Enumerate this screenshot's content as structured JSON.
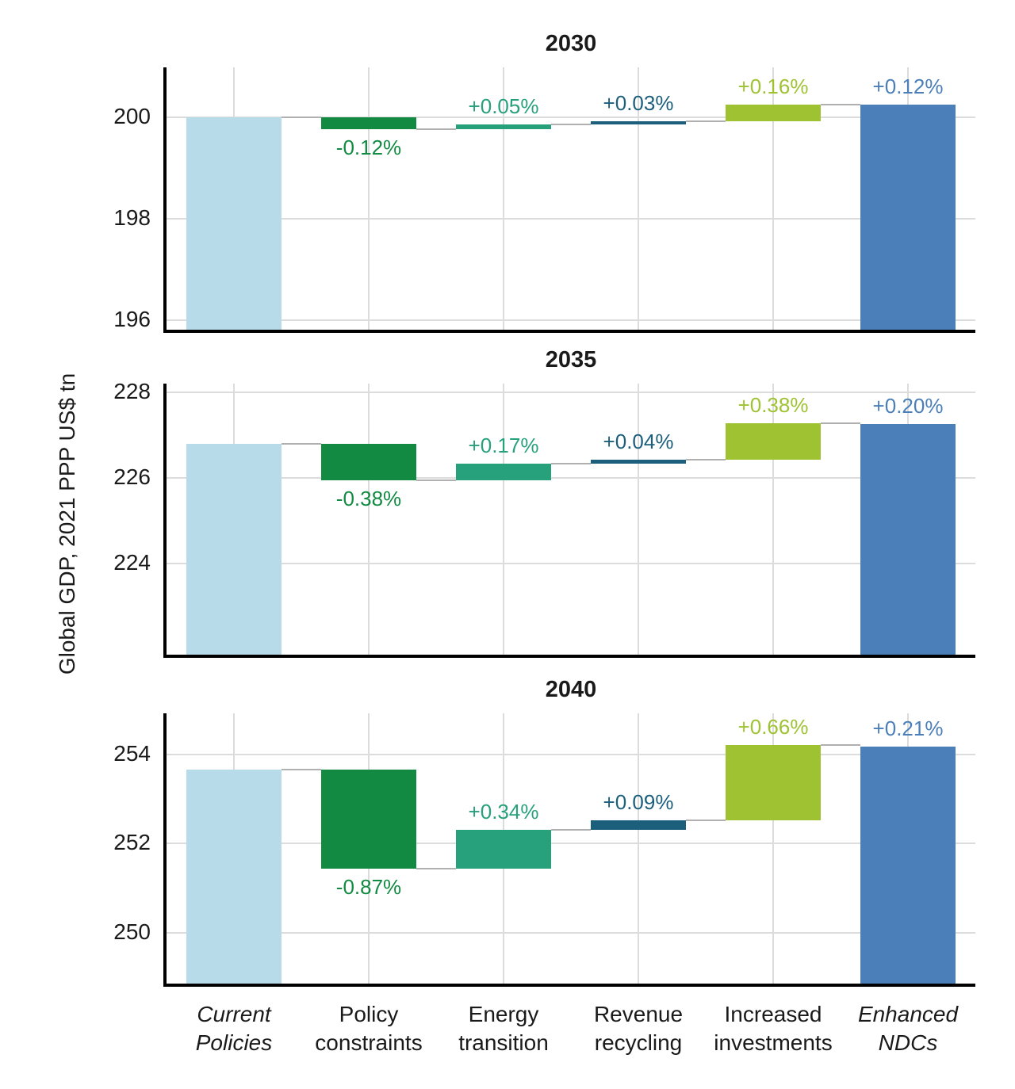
{
  "ylabel": "Global GDP, 2021 PPP US$ tn",
  "colors": {
    "current": "#b7dbe9",
    "policy": "#128a42",
    "energy": "#27a07c",
    "revenue": "#1c5f7c",
    "invest": "#9fc232",
    "ndc": "#4a7fba",
    "connector": "#b0b0b0",
    "grid": "#dcdcdc",
    "axis": "#000000",
    "text": "#1a1a1a"
  },
  "categories": [
    {
      "line1": "Current",
      "line2": "Policies",
      "italic": true
    },
    {
      "line1": "Policy",
      "line2": "constraints",
      "italic": false
    },
    {
      "line1": "Energy",
      "line2": "transition",
      "italic": false
    },
    {
      "line1": "Revenue",
      "line2": "recycling",
      "italic": false
    },
    {
      "line1": "Increased",
      "line2": "investments",
      "italic": false
    },
    {
      "line1": "Enhanced",
      "line2": "NDCs",
      "italic": true
    }
  ],
  "chart_data": [
    {
      "type": "waterfall",
      "title": "2030",
      "ylabel": "Global GDP, 2021 PPP US$ tn",
      "categories": [
        "Current Policies",
        "Policy constraints",
        "Energy transition",
        "Revenue recycling",
        "Increased investments",
        "Enhanced NDCs"
      ],
      "ylim": [
        195.75,
        200.98
      ],
      "yticks": [
        196,
        198,
        200
      ],
      "bars": [
        {
          "kind": "total",
          "to": 200.0,
          "color": "current",
          "label": ""
        },
        {
          "kind": "delta",
          "from": 200.0,
          "to": 199.76,
          "color": "policy",
          "label": "-0.12%",
          "label_pos": "below"
        },
        {
          "kind": "delta",
          "from": 199.76,
          "to": 199.86,
          "color": "energy",
          "label": "+0.05%",
          "label_pos": "above"
        },
        {
          "kind": "delta",
          "from": 199.86,
          "to": 199.92,
          "color": "revenue",
          "label": "+0.03%",
          "label_pos": "above"
        },
        {
          "kind": "delta",
          "from": 199.92,
          "to": 200.24,
          "color": "invest",
          "label": "+0.16%",
          "label_pos": "above"
        },
        {
          "kind": "total",
          "to": 200.24,
          "color": "ndc",
          "label": "+0.12%",
          "label_pos": "above"
        }
      ]
    },
    {
      "type": "waterfall",
      "title": "2035",
      "ylabel": "Global GDP, 2021 PPP US$ tn",
      "categories": [
        "Current Policies",
        "Policy constraints",
        "Energy transition",
        "Revenue recycling",
        "Increased investments",
        "Enhanced NDCs"
      ],
      "ylim": [
        221.8,
        228.2
      ],
      "yticks": [
        224,
        226,
        228
      ],
      "bars": [
        {
          "kind": "total",
          "to": 226.8,
          "color": "current",
          "label": ""
        },
        {
          "kind": "delta",
          "from": 226.8,
          "to": 225.94,
          "color": "policy",
          "label": "-0.38%",
          "label_pos": "below"
        },
        {
          "kind": "delta",
          "from": 225.94,
          "to": 226.33,
          "color": "energy",
          "label": "+0.17%",
          "label_pos": "above"
        },
        {
          "kind": "delta",
          "from": 226.33,
          "to": 226.42,
          "color": "revenue",
          "label": "+0.04%",
          "label_pos": "above"
        },
        {
          "kind": "delta",
          "from": 226.42,
          "to": 227.28,
          "color": "invest",
          "label": "+0.38%",
          "label_pos": "above"
        },
        {
          "kind": "total",
          "to": 227.25,
          "color": "ndc",
          "label": "+0.20%",
          "label_pos": "above"
        }
      ]
    },
    {
      "type": "waterfall",
      "title": "2040",
      "ylabel": "Global GDP, 2021 PPP US$ tn",
      "categories": [
        "Current Policies",
        "Policy constraints",
        "Energy transition",
        "Revenue recycling",
        "Increased investments",
        "Enhanced NDCs"
      ],
      "ylim": [
        248.79,
        254.92
      ],
      "yticks": [
        250,
        252,
        254
      ],
      "bars": [
        {
          "kind": "total",
          "to": 253.65,
          "color": "current",
          "label": ""
        },
        {
          "kind": "delta",
          "from": 253.65,
          "to": 251.44,
          "color": "policy",
          "label": "-0.87%",
          "label_pos": "below"
        },
        {
          "kind": "delta",
          "from": 251.44,
          "to": 252.31,
          "color": "energy",
          "label": "+0.34%",
          "label_pos": "above"
        },
        {
          "kind": "delta",
          "from": 252.31,
          "to": 252.53,
          "color": "revenue",
          "label": "+0.09%",
          "label_pos": "above"
        },
        {
          "kind": "delta",
          "from": 252.53,
          "to": 254.21,
          "color": "invest",
          "label": "+0.66%",
          "label_pos": "above"
        },
        {
          "kind": "total",
          "to": 254.18,
          "color": "ndc",
          "label": "+0.21%",
          "label_pos": "above"
        }
      ]
    }
  ]
}
